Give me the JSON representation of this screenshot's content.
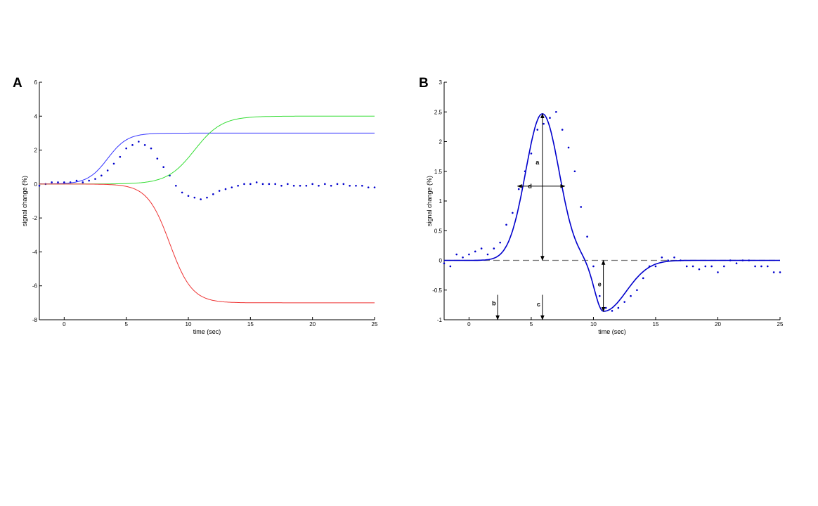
{
  "chart_data": [
    {
      "panel": "A",
      "type": "line",
      "xlabel": "time (sec)",
      "ylabel": "signal change (%)",
      "xlim": [
        -2,
        25
      ],
      "ylim": [
        -8,
        6
      ],
      "xticks": [
        0,
        5,
        10,
        15,
        20,
        25
      ],
      "yticks": [
        -8,
        -6,
        -4,
        -2,
        0,
        2,
        4,
        6
      ],
      "grid": false,
      "series": [
        {
          "name": "data",
          "style": "dots",
          "color": "#0000cc",
          "x": [
            -2,
            -1.5,
            -1,
            -0.5,
            0,
            0.5,
            1,
            1.5,
            2,
            2.5,
            3,
            3.5,
            4,
            4.5,
            5,
            5.5,
            6,
            6.5,
            7,
            7.5,
            8,
            8.5,
            9,
            9.5,
            10,
            10.5,
            11,
            11.5,
            12,
            12.5,
            13,
            13.5,
            14,
            14.5,
            15,
            15.5,
            16,
            16.5,
            17,
            17.5,
            18,
            18.5,
            19,
            19.5,
            20,
            20.5,
            21,
            21.5,
            22,
            22.5,
            23,
            23.5,
            24,
            24.5,
            25
          ],
          "y": [
            -0.1,
            0.0,
            0.1,
            0.1,
            0.1,
            0.1,
            0.2,
            0.1,
            0.2,
            0.3,
            0.5,
            0.8,
            1.2,
            1.6,
            2.1,
            2.3,
            2.5,
            2.3,
            2.1,
            1.5,
            1.0,
            0.5,
            -0.1,
            -0.5,
            -0.7,
            -0.8,
            -0.9,
            -0.8,
            -0.6,
            -0.4,
            -0.3,
            -0.2,
            -0.1,
            0.0,
            0.0,
            0.1,
            0.0,
            0.0,
            0.0,
            -0.1,
            0.0,
            -0.1,
            -0.1,
            -0.1,
            0.0,
            -0.1,
            0.0,
            -0.1,
            0.0,
            0.0,
            -0.1,
            -0.1,
            -0.1,
            -0.2,
            -0.2
          ]
        },
        {
          "name": "blue sigmoid",
          "style": "line",
          "color": "#3333ff",
          "amplitude": 3.0,
          "midpoint": 3.5,
          "width": 0.8
        },
        {
          "name": "green sigmoid",
          "style": "line",
          "color": "#33dd33",
          "amplitude": 4.0,
          "midpoint": 10.5,
          "width": 1.1
        },
        {
          "name": "red sigmoid",
          "style": "line",
          "color": "#ee3333",
          "amplitude": -7.0,
          "midpoint": 8.5,
          "width": 0.9
        }
      ]
    },
    {
      "panel": "B",
      "type": "line",
      "xlabel": "time (sec)",
      "ylabel": "signal change (%)",
      "xlim": [
        -2,
        25
      ],
      "ylim": [
        -1,
        3
      ],
      "xticks": [
        0,
        5,
        10,
        15,
        20,
        25
      ],
      "yticks": [
        -1,
        -0.5,
        0,
        0.5,
        1,
        1.5,
        2,
        2.5,
        3
      ],
      "ytick_labels": [
        "-1",
        "-0.5",
        "0",
        "0.5",
        "1",
        "1.5",
        "2",
        "2.5",
        "3"
      ],
      "grid": false,
      "baseline": 0,
      "series": [
        {
          "name": "data",
          "style": "dots",
          "color": "#0000cc",
          "x": [
            -2,
            -1.5,
            -1,
            -0.5,
            0,
            0.5,
            1,
            1.5,
            2,
            2.5,
            3,
            3.5,
            4,
            4.5,
            5,
            5.5,
            6,
            6.5,
            7,
            7.5,
            8,
            8.5,
            9,
            9.5,
            10,
            10.5,
            11,
            11.5,
            12,
            12.5,
            13,
            13.5,
            14,
            14.5,
            15,
            15.5,
            16,
            16.5,
            17,
            17.5,
            18,
            18.5,
            19,
            19.5,
            20,
            20.5,
            21,
            21.5,
            22,
            22.5,
            23,
            23.5,
            24,
            24.5,
            25
          ],
          "y": [
            -0.05,
            -0.1,
            0.1,
            0.05,
            0.1,
            0.15,
            0.2,
            0.1,
            0.2,
            0.3,
            0.6,
            0.8,
            1.2,
            1.5,
            1.8,
            2.2,
            2.3,
            2.4,
            2.5,
            2.2,
            1.9,
            1.5,
            0.9,
            0.4,
            -0.1,
            -0.6,
            -0.8,
            -0.85,
            -0.8,
            -0.7,
            -0.6,
            -0.5,
            -0.3,
            -0.1,
            -0.1,
            0.05,
            0.0,
            0.05,
            0.0,
            -0.1,
            -0.1,
            -0.15,
            -0.1,
            -0.1,
            -0.2,
            -0.1,
            0.0,
            -0.05,
            0.0,
            0.0,
            -0.1,
            -0.1,
            -0.1,
            -0.2,
            -0.2
          ]
        },
        {
          "name": "fit",
          "style": "line",
          "color": "#0000cc",
          "peak_amp": 2.47,
          "peak_time": 5.9,
          "peak_width": 1.9,
          "under_amp": -0.86,
          "under_time": 10.8,
          "under_width_rise": 1.0,
          "under_width_fall": 2.6
        }
      ],
      "annotations": [
        {
          "text": "a",
          "kind": "double-arrow-vertical",
          "x": 5.9,
          "y1": 0,
          "y2": 2.47,
          "label_x": 5.5,
          "label_y": 1.65
        },
        {
          "text": "d",
          "kind": "double-arrow-horizontal",
          "y": 1.25,
          "x1": 3.9,
          "x2": 7.7,
          "label_x": 4.9,
          "label_y": 1.25
        },
        {
          "text": "e",
          "kind": "double-arrow-vertical",
          "x": 10.8,
          "y1": 0,
          "y2": -0.86,
          "label_x": 10.5,
          "label_y": -0.4
        },
        {
          "text": "b",
          "kind": "down-arrow",
          "x": 2.3,
          "y_top": -0.58,
          "y_bottom": -1,
          "label_x": 2.0,
          "label_y": -0.72
        },
        {
          "text": "c",
          "kind": "down-arrow",
          "x": 5.9,
          "y_top": -0.58,
          "y_bottom": -1,
          "label_x": 5.6,
          "label_y": -0.74
        }
      ]
    }
  ]
}
